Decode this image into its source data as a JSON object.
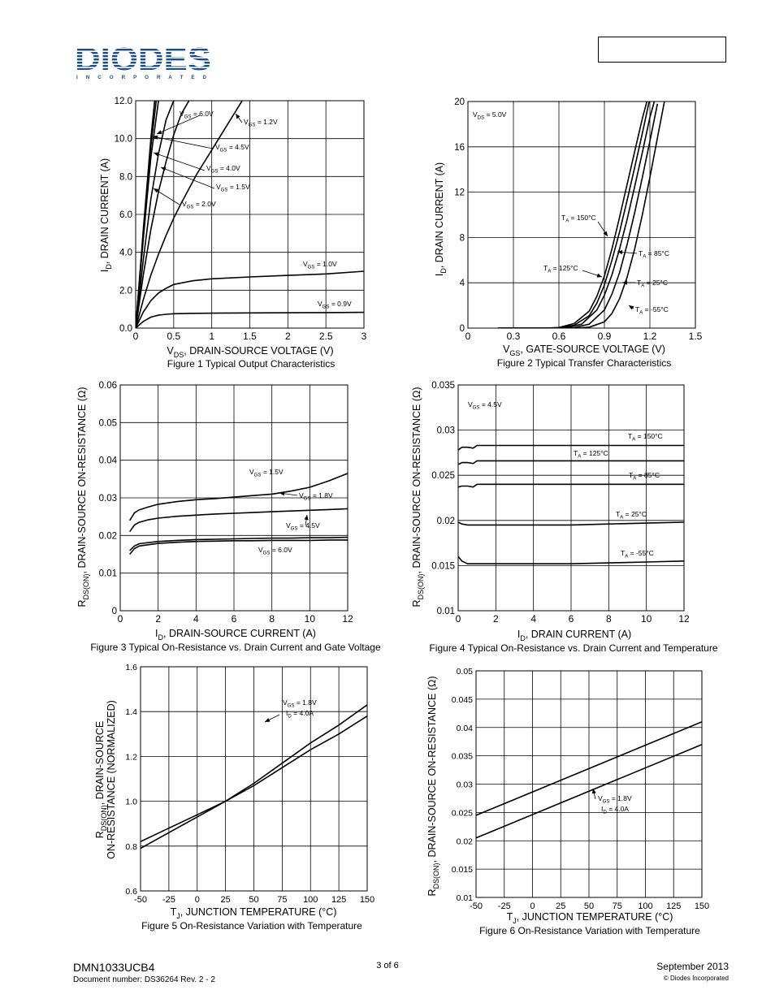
{
  "header": {
    "logo_text": "DIODES",
    "logo_subtext": "I N C O R P O R A T E D",
    "brand_color": "#1a4d8f",
    "part_number_box": ""
  },
  "figures": [
    {
      "id": "fig1",
      "caption": "Figure 1  Typical Output Characteristics",
      "x_label": "V_DS, DRAIN-SOURCE VOLTAGE (V)",
      "y_label": "I_D, DRAIN CURRENT (A)",
      "x_ticks": [
        "0",
        "0.5",
        "1",
        "1.5",
        "2",
        "2.5",
        "3"
      ],
      "y_ticks": [
        "0.0",
        "2.0",
        "4.0",
        "6.0",
        "8.0",
        "10.0",
        "12.0"
      ],
      "annotations": [
        "V_GS = 6.0V",
        "V_GS = 1.2V",
        "V_GS = 4.5V",
        "V_GS = 4.0V",
        "V_GS = 1.5V",
        "V_GS = 2.0V",
        "V_GS = 1.0V",
        "V_GS = 0.9V"
      ]
    },
    {
      "id": "fig2",
      "caption": "Figure 2  Typical Transfer Characteristics",
      "x_label": "V_GS, GATE-SOURCE VOLTAGE (V)",
      "y_label": "I_D, DRAIN CURRENT (A)",
      "x_ticks": [
        "0",
        "0.3",
        "0.6",
        "0.9",
        "1.2",
        "1.5"
      ],
      "y_ticks": [
        "0",
        "4",
        "8",
        "12",
        "16",
        "20"
      ],
      "annotations": [
        "V_DS = 5.0V",
        "T_A = 150°C",
        "T_A = 125°C",
        "T_A = 85°C",
        "T_A = 25°C",
        "T_A = -55°C"
      ]
    },
    {
      "id": "fig3",
      "caption": "Figure 3  Typical On-Resistance vs.  Drain Current and Gate Voltage",
      "x_label": "I_D, DRAIN-SOURCE CURRENT (A)",
      "y_label": "R_DS(ON), DRAIN-SOURCE ON-RESISTANCE (Ω)",
      "x_ticks": [
        "0",
        "2",
        "4",
        "6",
        "8",
        "10",
        "12"
      ],
      "y_ticks": [
        "0",
        "0.01",
        "0.02",
        "0.03",
        "0.04",
        "0.05",
        "0.06"
      ],
      "annotations": [
        "V_GS = 1.5V",
        "V_GS = 1.8V",
        "V_GS = 4.5V",
        "V_GS = 6.0V"
      ]
    },
    {
      "id": "fig4",
      "caption": "Figure 4  Typical On-Resistance vs.  Drain Current and Temperature",
      "x_label": "I_D, DRAIN CURRENT (A)",
      "y_label": "R_DS(ON), DRAIN-SOURCE ON-RESISTANCE (Ω)",
      "x_ticks": [
        "0",
        "2",
        "4",
        "6",
        "8",
        "10",
        "12"
      ],
      "y_ticks": [
        "0.01",
        "0.015",
        "0.02",
        "0.025",
        "0.03",
        "0.035"
      ],
      "annotations": [
        "V_GS = 4.5V",
        "T_A = 150°C",
        "T_A = 125°C",
        "T_A = 85°C",
        "T_A = 25°C",
        "T_A = -55°C"
      ]
    },
    {
      "id": "fig5",
      "caption": "Figure 5  On-Resistance Variation with Temperature",
      "x_label": "T_J, JUNCTION TEMPERATURE (°C)",
      "y_label_line1": "R_DS(ON), DRAIN-SOURCE",
      "y_label_line2": "ON-RESISTANCE (NORMALIZED)",
      "x_ticks": [
        "-50",
        "-25",
        "0",
        "25",
        "50",
        "75",
        "100",
        "125",
        "150"
      ],
      "y_ticks": [
        "0.6",
        "0.8",
        "1.0",
        "1.2",
        "1.4",
        "1.6"
      ],
      "annotations": [
        "V_GS = 1.8V",
        "I_D = 4.0A"
      ]
    },
    {
      "id": "fig6",
      "caption": "Figure 6  On-Resistance Variation with Temperature",
      "x_label": "T_J, JUNCTION TEMPERATURE (°C)",
      "y_label": "R_DS(ON), DRAIN-SOURCE ON-RESISTANCE (Ω)",
      "x_ticks": [
        "-50",
        "-25",
        "0",
        "25",
        "50",
        "75",
        "100",
        "125",
        "150"
      ],
      "y_ticks": [
        "0.01",
        "0.015",
        "0.02",
        "0.025",
        "0.03",
        "0.035",
        "0.04",
        "0.045",
        "0.05"
      ],
      "annotations": [
        "V_GS = 1.8V",
        "I_D = 4.0A"
      ]
    }
  ],
  "chart_data": [
    {
      "type": "line",
      "x_range": [
        0,
        3
      ],
      "y_range": [
        0,
        12
      ],
      "series": [
        {
          "x": [
            0,
            0.05,
            0.1,
            0.15,
            0.2,
            0.25
          ],
          "y": [
            0,
            2.6,
            5.2,
            7.6,
            10.0,
            12.0
          ]
        },
        {
          "x": [
            0,
            0.05,
            0.1,
            0.15,
            0.2,
            0.27
          ],
          "y": [
            0,
            2.5,
            5.0,
            7.3,
            9.6,
            12.0
          ]
        },
        {
          "x": [
            0,
            0.05,
            0.1,
            0.15,
            0.2,
            0.3
          ],
          "y": [
            0,
            2.4,
            4.7,
            6.9,
            9.0,
            12.0
          ]
        },
        {
          "x": [
            0,
            0.1,
            0.2,
            0.3,
            0.4,
            0.5
          ],
          "y": [
            0,
            3.6,
            6.8,
            9.2,
            11.0,
            12.0
          ]
        },
        {
          "x": [
            0,
            0.1,
            0.2,
            0.3,
            0.4,
            0.5,
            0.6,
            0.7
          ],
          "y": [
            0,
            2.8,
            5.2,
            7.2,
            8.8,
            10.2,
            11.3,
            12.0
          ]
        },
        {
          "x": [
            0,
            0.1,
            0.2,
            0.3,
            0.4,
            0.5,
            0.6,
            0.8,
            1.0,
            1.2,
            1.4
          ],
          "y": [
            0,
            1.5,
            2.8,
            3.9,
            4.9,
            5.8,
            6.6,
            8.1,
            9.4,
            10.7,
            12.0
          ]
        },
        {
          "x": [
            0,
            0.1,
            0.2,
            0.3,
            0.4,
            0.5,
            0.75,
            1.0,
            1.5,
            2.0,
            2.5,
            3.0
          ],
          "y": [
            0,
            0.85,
            1.45,
            1.85,
            2.1,
            2.3,
            2.5,
            2.6,
            2.7,
            2.78,
            2.86,
            3.0
          ]
        },
        {
          "x": [
            0,
            0.1,
            0.2,
            0.3,
            0.4,
            0.5,
            0.75,
            1.0,
            1.5,
            2.0,
            2.5,
            3.0
          ],
          "y": [
            0,
            0.35,
            0.58,
            0.68,
            0.73,
            0.76,
            0.78,
            0.79,
            0.8,
            0.81,
            0.82,
            0.83
          ]
        }
      ]
    },
    {
      "type": "line",
      "x_range": [
        0,
        1.5
      ],
      "y_range": [
        0,
        20
      ],
      "series": [
        {
          "x": [
            0.2,
            0.5,
            0.6,
            0.7,
            0.8,
            0.85,
            0.9,
            0.95,
            1.0,
            1.05,
            1.1,
            1.15,
            1.2
          ],
          "y": [
            0,
            0,
            0.05,
            0.4,
            1.5,
            2.8,
            4.6,
            7.0,
            9.8,
            12.7,
            15.6,
            18.5,
            21
          ]
        },
        {
          "x": [
            0.2,
            0.5,
            0.6,
            0.7,
            0.8,
            0.85,
            0.9,
            0.95,
            1.0,
            1.05,
            1.1,
            1.15,
            1.2
          ],
          "y": [
            0,
            0,
            0.03,
            0.25,
            1.1,
            2.2,
            3.8,
            6.0,
            8.5,
            11.3,
            14.2,
            17.2,
            20.3
          ]
        },
        {
          "x": [
            0.2,
            0.55,
            0.65,
            0.75,
            0.85,
            0.9,
            0.95,
            1.0,
            1.05,
            1.1,
            1.15,
            1.2,
            1.25
          ],
          "y": [
            0,
            0,
            0.05,
            0.35,
            1.6,
            2.9,
            4.7,
            7.0,
            9.6,
            12.5,
            15.5,
            18.6,
            21
          ]
        },
        {
          "x": [
            0.2,
            0.6,
            0.7,
            0.8,
            0.9,
            0.95,
            1.0,
            1.05,
            1.1,
            1.15,
            1.2,
            1.25
          ],
          "y": [
            0,
            0,
            0.05,
            0.35,
            1.6,
            3.0,
            4.9,
            7.4,
            10.2,
            13.3,
            16.5,
            19.8
          ]
        },
        {
          "x": [
            0.2,
            0.7,
            0.8,
            0.9,
            0.95,
            1.0,
            1.05,
            1.1,
            1.15,
            1.2,
            1.25,
            1.3
          ],
          "y": [
            0,
            0,
            0.08,
            0.55,
            1.3,
            2.6,
            4.5,
            7.0,
            10.0,
            13.3,
            16.8,
            20.3
          ]
        }
      ]
    },
    {
      "type": "line",
      "x_range": [
        0,
        12
      ],
      "y_range": [
        0,
        0.06
      ],
      "series": [
        {
          "x": [
            0.5,
            0.75,
            1,
            1.5,
            2,
            3,
            4,
            5,
            6,
            7,
            8,
            9,
            10,
            11,
            12
          ],
          "y": [
            0.024,
            0.026,
            0.0268,
            0.0276,
            0.0283,
            0.029,
            0.0295,
            0.0298,
            0.0302,
            0.0306,
            0.031,
            0.0318,
            0.0328,
            0.0345,
            0.0365
          ]
        },
        {
          "x": [
            0.5,
            0.75,
            1,
            1.5,
            2,
            3,
            4,
            5,
            6,
            7,
            8,
            9,
            10,
            11,
            12
          ],
          "y": [
            0.021,
            0.0228,
            0.0235,
            0.0242,
            0.0246,
            0.0251,
            0.0254,
            0.0257,
            0.0259,
            0.0261,
            0.0263,
            0.0265,
            0.0267,
            0.0269,
            0.0271
          ]
        },
        {
          "x": [
            0.5,
            0.75,
            1,
            2,
            3,
            4,
            5,
            6,
            7,
            8,
            9,
            10,
            11,
            12
          ],
          "y": [
            0.016,
            0.0172,
            0.0178,
            0.0184,
            0.0187,
            0.0189,
            0.019,
            0.0191,
            0.0192,
            0.0193,
            0.0193,
            0.0194,
            0.0194,
            0.0195
          ]
        },
        {
          "x": [
            0.5,
            0.75,
            1,
            2,
            3,
            4,
            5,
            6,
            7,
            8,
            9,
            10,
            11,
            12
          ],
          "y": [
            0.015,
            0.0165,
            0.0172,
            0.0179,
            0.0182,
            0.0184,
            0.0185,
            0.0186,
            0.0186,
            0.0187,
            0.0187,
            0.0187,
            0.0188,
            0.0188
          ]
        }
      ]
    },
    {
      "type": "line",
      "x_range": [
        0,
        12
      ],
      "y_range": [
        0.01,
        0.035
      ],
      "series": [
        {
          "x": [
            0,
            0.2,
            0.5,
            0.8,
            1,
            2,
            4,
            6,
            8,
            10,
            12
          ],
          "y": [
            0.0278,
            0.0281,
            0.0281,
            0.028,
            0.0283,
            0.0283,
            0.0283,
            0.0283,
            0.0283,
            0.0283,
            0.0283
          ]
        },
        {
          "x": [
            0,
            0.2,
            0.5,
            0.8,
            1,
            2,
            4,
            6,
            8,
            10,
            12
          ],
          "y": [
            0.0262,
            0.0264,
            0.0264,
            0.0263,
            0.0266,
            0.0266,
            0.0266,
            0.0266,
            0.0266,
            0.0266,
            0.0266
          ]
        },
        {
          "x": [
            0,
            0.2,
            0.5,
            0.8,
            1,
            2,
            4,
            6,
            8,
            10,
            12
          ],
          "y": [
            0.0237,
            0.0238,
            0.0238,
            0.0237,
            0.024,
            0.024,
            0.024,
            0.024,
            0.024,
            0.024,
            0.024
          ]
        },
        {
          "x": [
            0,
            0.2,
            0.5,
            1,
            2,
            4,
            6,
            8,
            10,
            12
          ],
          "y": [
            0.0198,
            0.0196,
            0.0195,
            0.0195,
            0.0195,
            0.0195,
            0.0195,
            0.0196,
            0.0197,
            0.0198
          ]
        },
        {
          "x": [
            0,
            0.2,
            0.5,
            1,
            2,
            4,
            6,
            8,
            10,
            12
          ],
          "y": [
            0.016,
            0.0155,
            0.0152,
            0.0152,
            0.0152,
            0.0152,
            0.0152,
            0.0153,
            0.0154,
            0.0155
          ]
        }
      ]
    },
    {
      "type": "line",
      "x_range": [
        -50,
        150
      ],
      "y_range": [
        0.6,
        1.6
      ],
      "series": [
        {
          "x": [
            -50,
            -25,
            0,
            25,
            50,
            75,
            100,
            125,
            150
          ],
          "y": [
            0.79,
            0.86,
            0.93,
            1.0,
            1.08,
            1.17,
            1.26,
            1.34,
            1.43
          ]
        },
        {
          "x": [
            -50,
            -25,
            0,
            25,
            50,
            75,
            100,
            125,
            150
          ],
          "y": [
            0.82,
            0.88,
            0.94,
            1.0,
            1.07,
            1.15,
            1.23,
            1.3,
            1.38
          ]
        }
      ]
    },
    {
      "type": "line",
      "x_range": [
        -50,
        150
      ],
      "y_range": [
        0.01,
        0.05
      ],
      "series": [
        {
          "x": [
            -50,
            150
          ],
          "y": [
            0.0245,
            0.041
          ]
        },
        {
          "x": [
            -50,
            150
          ],
          "y": [
            0.0205,
            0.037
          ]
        }
      ]
    }
  ],
  "footer": {
    "part_number": "DMN1033UCB4",
    "document_number": "Document number: DS36264  Rev. 2 - 2",
    "page": "3 of 6",
    "date": "September 2013",
    "copyright": "© Diodes Incorporated"
  }
}
